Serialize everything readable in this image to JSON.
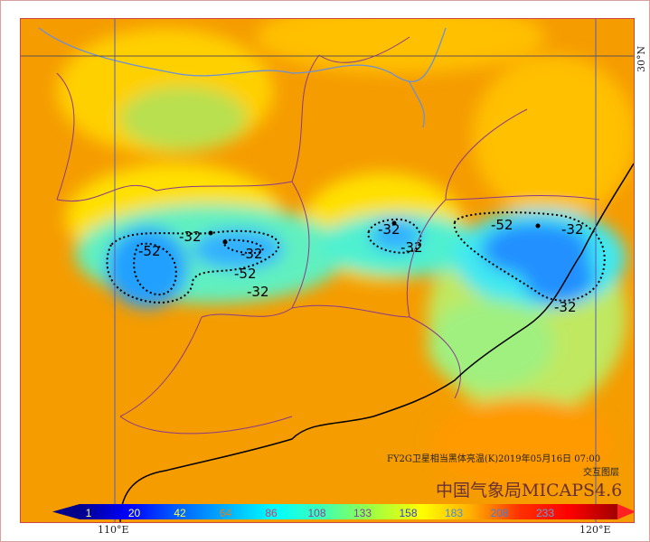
{
  "map": {
    "title": "FY2G卫星相当黑体亮温(K)2019年05月16日 07:00",
    "layer_label": "交互图层",
    "watermark": "中国气象局MICAPS4.6",
    "lon_labels": [
      "110°E",
      "120°E"
    ],
    "lat_labels": [
      "30°N"
    ],
    "contour_labels": [
      "-52",
      "-32",
      "-32",
      "-52",
      "-32",
      "-32",
      "-32",
      "-52",
      "-32",
      "-32"
    ],
    "colorbar": {
      "labels": [
        "1",
        "20",
        "42",
        "64",
        "86",
        "108",
        "133",
        "158",
        "183",
        "208",
        "233"
      ],
      "colors": [
        "#00008b",
        "#0000ff",
        "#0060ff",
        "#00b0ff",
        "#00ffff",
        "#40ffb0",
        "#a0ff40",
        "#ffff00",
        "#ffb000",
        "#ff3000",
        "#ff0000",
        "#a00000"
      ]
    }
  }
}
